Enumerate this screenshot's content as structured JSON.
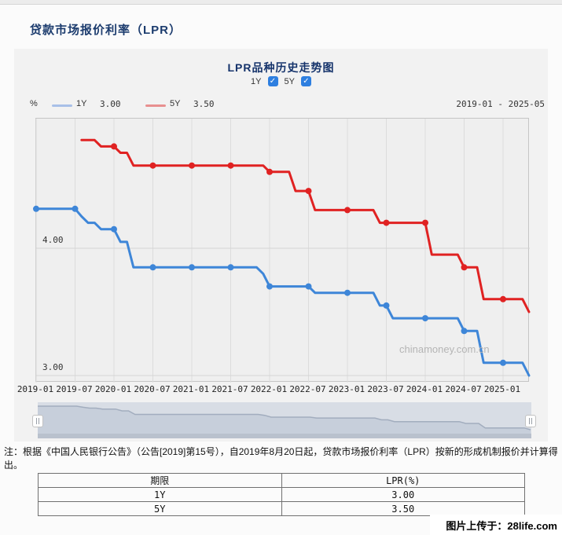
{
  "page": {
    "title": "贷款市场报价利率（LPR）",
    "note": "注：根据《中国人民银行公告》（公告[2019]第15号），自2019年8月20日起，贷款市场报价利率（LPR）按新的形成机制报价并计算得出。",
    "footer_upload": "图片上传于：28life.com"
  },
  "ui_colors": {
    "checkbox_blue": "#2e7fe0",
    "title_navy": "#15336b",
    "line_blue": "#3e86d8",
    "line_red": "#e02222"
  },
  "chart": {
    "title": "LPR品种历史走势图",
    "unit_label": "%",
    "date_range": "2019-01 - 2025-05",
    "watermark": "chinamoney.com.cn",
    "toggles": [
      {
        "label": "1Y",
        "checked": true,
        "check_glyph": "✓"
      },
      {
        "label": "5Y",
        "checked": true,
        "check_glyph": "✓"
      }
    ],
    "legend": [
      {
        "label": "1Y",
        "value": "3.00",
        "swatch_color": "#a8c0e8"
      },
      {
        "label": "5Y",
        "value": "3.50",
        "swatch_color": "#e89090"
      }
    ]
  },
  "chart_data": {
    "type": "line",
    "title": "LPR品种历史走势图",
    "ylabel": "%",
    "x_start": "2019-01",
    "x_end": "2025-05",
    "x_tick_labels": [
      "2019-01",
      "2019-07",
      "2020-01",
      "2020-07",
      "2021-01",
      "2021-07",
      "2022-01",
      "2022-07",
      "2023-01",
      "2023-07",
      "2024-01",
      "2024-07",
      "2025-01"
    ],
    "y_axis_labels": [
      "4.00",
      "3.00"
    ],
    "y_gridlines": [
      4.0,
      3.0
    ],
    "ylim": [
      2.93,
      5.02
    ],
    "grid": true,
    "marker_every_months": 6,
    "legend_position": "top-left",
    "series": [
      {
        "name": "1Y",
        "color": "#3e86d8",
        "latest": 3.0,
        "values": [
          4.31,
          4.31,
          4.31,
          4.31,
          4.31,
          4.31,
          4.31,
          4.25,
          4.2,
          4.2,
          4.15,
          4.15,
          4.15,
          4.05,
          4.05,
          3.85,
          3.85,
          3.85,
          3.85,
          3.85,
          3.85,
          3.85,
          3.85,
          3.85,
          3.85,
          3.85,
          3.85,
          3.85,
          3.85,
          3.85,
          3.85,
          3.85,
          3.85,
          3.85,
          3.85,
          3.8,
          3.7,
          3.7,
          3.7,
          3.7,
          3.7,
          3.7,
          3.7,
          3.65,
          3.65,
          3.65,
          3.65,
          3.65,
          3.65,
          3.65,
          3.65,
          3.65,
          3.65,
          3.55,
          3.55,
          3.45,
          3.45,
          3.45,
          3.45,
          3.45,
          3.45,
          3.45,
          3.45,
          3.45,
          3.45,
          3.45,
          3.35,
          3.35,
          3.35,
          3.1,
          3.1,
          3.1,
          3.1,
          3.1,
          3.1,
          3.1,
          3.0
        ]
      },
      {
        "name": "5Y",
        "color": "#e02222",
        "latest": 3.5,
        "values": [
          null,
          null,
          null,
          null,
          null,
          null,
          null,
          4.85,
          4.85,
          4.85,
          4.8,
          4.8,
          4.8,
          4.75,
          4.75,
          4.65,
          4.65,
          4.65,
          4.65,
          4.65,
          4.65,
          4.65,
          4.65,
          4.65,
          4.65,
          4.65,
          4.65,
          4.65,
          4.65,
          4.65,
          4.65,
          4.65,
          4.65,
          4.65,
          4.65,
          4.65,
          4.6,
          4.6,
          4.6,
          4.6,
          4.45,
          4.45,
          4.45,
          4.3,
          4.3,
          4.3,
          4.3,
          4.3,
          4.3,
          4.3,
          4.3,
          4.3,
          4.3,
          4.2,
          4.2,
          4.2,
          4.2,
          4.2,
          4.2,
          4.2,
          4.2,
          3.95,
          3.95,
          3.95,
          3.95,
          3.95,
          3.85,
          3.85,
          3.85,
          3.6,
          3.6,
          3.6,
          3.6,
          3.6,
          3.6,
          3.6,
          3.5
        ]
      }
    ]
  },
  "table": {
    "headers": [
      "期限",
      "LPR(%)"
    ],
    "rows": [
      [
        "1Y",
        "3.00"
      ],
      [
        "5Y",
        "3.50"
      ]
    ]
  }
}
